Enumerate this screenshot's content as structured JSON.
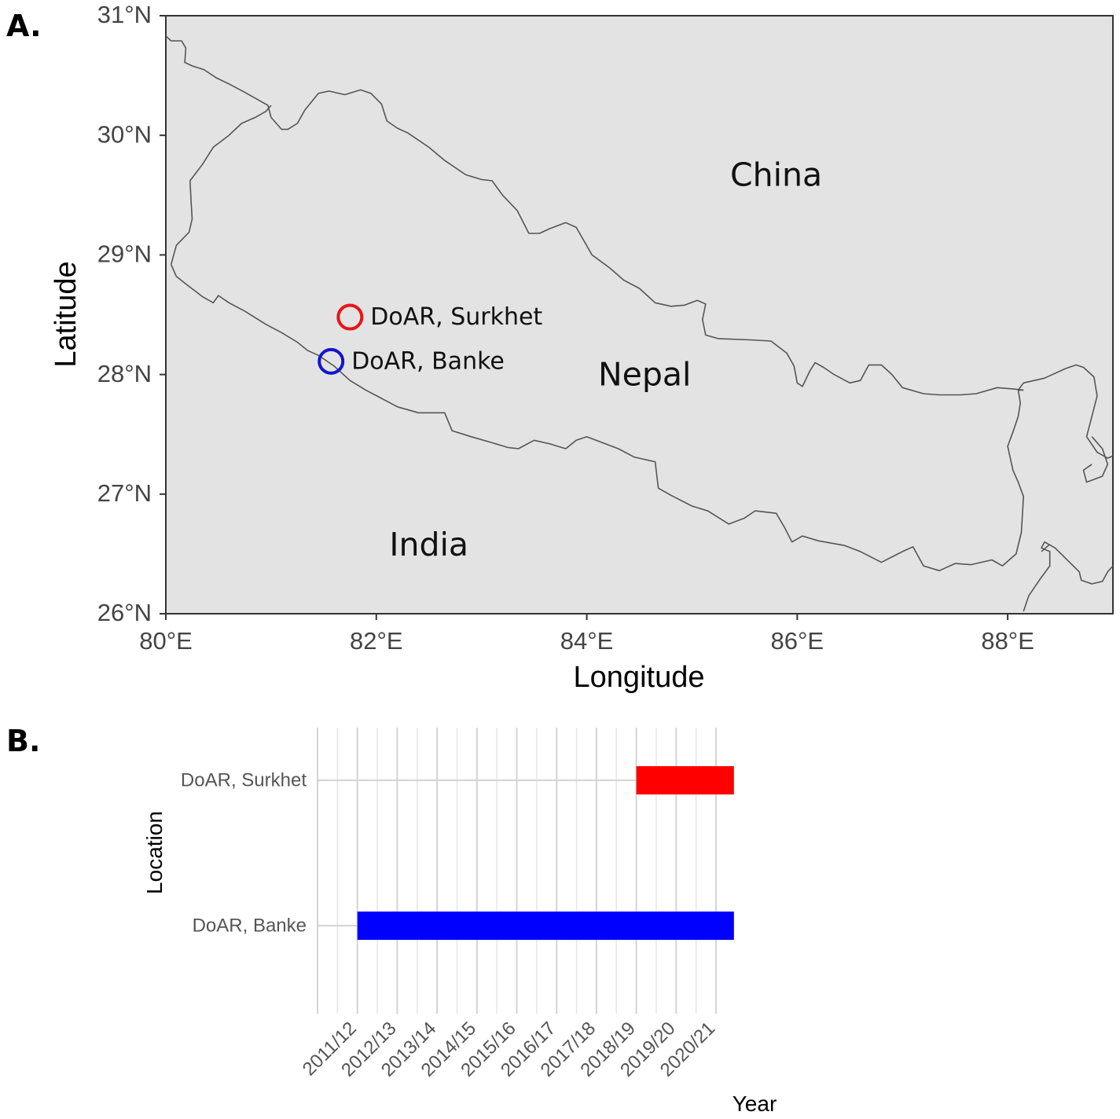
{
  "panels": {
    "a_label": "A.",
    "b_label": "B."
  },
  "chart_data": [
    {
      "type": "scatter",
      "panel": "A.",
      "xlabel": "Longitude",
      "ylabel": "Latitude",
      "xlim": [
        80,
        89
      ],
      "ylim": [
        26,
        31
      ],
      "x_ticks": [
        80,
        82,
        84,
        86,
        88
      ],
      "x_tick_labels": [
        "80°E",
        "82°E",
        "84°E",
        "86°E",
        "88°E"
      ],
      "y_ticks": [
        26,
        27,
        28,
        29,
        30,
        31
      ],
      "y_tick_labels": [
        "26°N",
        "27°N",
        "28°N",
        "29°N",
        "30°N",
        "31°N"
      ],
      "grid": false,
      "background": "#e3e3e3",
      "border_color": "#555555",
      "regions": [
        {
          "name": "China",
          "lon": 85.8,
          "lat": 29.65
        },
        {
          "name": "Nepal",
          "lon": 84.55,
          "lat": 27.98
        },
        {
          "name": "India",
          "lon": 82.5,
          "lat": 26.56
        }
      ],
      "points": [
        {
          "label": "DoAR, Surkhet",
          "lon": 81.75,
          "lat": 28.48,
          "color": "#e8141b"
        },
        {
          "label": "DoAR, Banke",
          "lon": 81.57,
          "lat": 28.11,
          "color": "#1414d2"
        }
      ],
      "borders": [
        [
          [
            80.0,
            30.83
          ],
          [
            80.05,
            30.79
          ],
          [
            80.15,
            30.79
          ],
          [
            80.19,
            30.73
          ],
          [
            80.18,
            30.61
          ],
          [
            80.25,
            30.58
          ],
          [
            80.36,
            30.55
          ],
          [
            80.48,
            30.48
          ],
          [
            80.6,
            30.43
          ],
          [
            80.75,
            30.36
          ],
          [
            80.97,
            30.25
          ],
          [
            81.0,
            30.15
          ],
          [
            81.1,
            30.05
          ],
          [
            81.16,
            30.05
          ],
          [
            81.25,
            30.1
          ],
          [
            81.32,
            30.21
          ],
          [
            81.45,
            30.35
          ],
          [
            81.55,
            30.37
          ],
          [
            81.7,
            30.34
          ],
          [
            81.85,
            30.38
          ],
          [
            81.95,
            30.35
          ],
          [
            82.05,
            30.26
          ],
          [
            82.1,
            30.12
          ],
          [
            82.2,
            30.06
          ],
          [
            82.3,
            30.02
          ],
          [
            82.4,
            29.96
          ],
          [
            82.5,
            29.9
          ],
          [
            82.65,
            29.79
          ],
          [
            82.85,
            29.67
          ],
          [
            83.0,
            29.63
          ],
          [
            83.1,
            29.62
          ],
          [
            83.2,
            29.5
          ],
          [
            83.34,
            29.37
          ],
          [
            83.45,
            29.18
          ],
          [
            83.55,
            29.18
          ],
          [
            83.65,
            29.22
          ],
          [
            83.8,
            29.27
          ],
          [
            83.9,
            29.23
          ],
          [
            84.05,
            29.0
          ],
          [
            84.22,
            28.89
          ],
          [
            84.35,
            28.79
          ],
          [
            84.5,
            28.72
          ],
          [
            84.65,
            28.6
          ],
          [
            84.8,
            28.57
          ],
          [
            84.93,
            28.58
          ],
          [
            85.05,
            28.62
          ],
          [
            85.13,
            28.59
          ],
          [
            85.1,
            28.46
          ],
          [
            85.13,
            28.33
          ],
          [
            85.25,
            28.3
          ],
          [
            85.55,
            28.29
          ],
          [
            85.75,
            28.28
          ],
          [
            85.9,
            28.18
          ],
          [
            85.97,
            28.07
          ],
          [
            86.0,
            27.93
          ],
          [
            86.05,
            27.9
          ],
          [
            86.12,
            28.03
          ],
          [
            86.17,
            28.1
          ],
          [
            86.25,
            28.06
          ],
          [
            86.35,
            28.0
          ],
          [
            86.5,
            27.93
          ],
          [
            86.6,
            27.95
          ],
          [
            86.68,
            28.08
          ],
          [
            86.8,
            28.08
          ],
          [
            86.9,
            28.0
          ],
          [
            87.0,
            27.89
          ],
          [
            87.2,
            27.84
          ],
          [
            87.35,
            27.83
          ],
          [
            87.55,
            27.83
          ],
          [
            87.7,
            27.84
          ],
          [
            87.9,
            27.89
          ],
          [
            88.05,
            27.88
          ],
          [
            88.15,
            27.87
          ]
        ],
        [
          [
            80.05,
            28.92
          ],
          [
            80.1,
            29.08
          ],
          [
            80.22,
            29.19
          ],
          [
            80.25,
            29.3
          ],
          [
            80.24,
            29.45
          ],
          [
            80.23,
            29.62
          ],
          [
            80.35,
            29.76
          ],
          [
            80.45,
            29.9
          ],
          [
            80.6,
            30.0
          ],
          [
            80.72,
            30.1
          ],
          [
            80.85,
            30.15
          ],
          [
            80.95,
            30.2
          ],
          [
            81.0,
            30.25
          ]
        ],
        [
          [
            80.05,
            28.92
          ],
          [
            80.1,
            28.82
          ],
          [
            80.2,
            28.75
          ],
          [
            80.35,
            28.65
          ],
          [
            80.45,
            28.6
          ],
          [
            80.5,
            28.66
          ],
          [
            80.6,
            28.6
          ],
          [
            80.75,
            28.53
          ],
          [
            80.95,
            28.42
          ],
          [
            81.1,
            28.35
          ],
          [
            81.25,
            28.27
          ],
          [
            81.35,
            28.2
          ],
          [
            81.45,
            28.16
          ],
          [
            81.6,
            28.07
          ],
          [
            81.75,
            27.95
          ],
          [
            81.9,
            27.87
          ],
          [
            82.05,
            27.8
          ],
          [
            82.2,
            27.73
          ],
          [
            82.4,
            27.68
          ],
          [
            82.55,
            27.68
          ],
          [
            82.65,
            27.68
          ],
          [
            82.72,
            27.53
          ],
          [
            82.9,
            27.48
          ],
          [
            83.1,
            27.43
          ],
          [
            83.25,
            27.39
          ],
          [
            83.35,
            27.38
          ],
          [
            83.5,
            27.45
          ],
          [
            83.65,
            27.42
          ],
          [
            83.8,
            27.38
          ],
          [
            83.9,
            27.45
          ],
          [
            84.0,
            27.48
          ],
          [
            84.15,
            27.43
          ],
          [
            84.3,
            27.38
          ],
          [
            84.45,
            27.31
          ],
          [
            84.65,
            27.27
          ],
          [
            84.68,
            27.05
          ],
          [
            84.8,
            26.99
          ],
          [
            85.0,
            26.9
          ],
          [
            85.15,
            26.86
          ],
          [
            85.35,
            26.75
          ],
          [
            85.5,
            26.8
          ],
          [
            85.6,
            26.86
          ],
          [
            85.8,
            26.84
          ],
          [
            85.88,
            26.72
          ],
          [
            85.95,
            26.6
          ],
          [
            86.05,
            26.65
          ],
          [
            86.2,
            26.61
          ],
          [
            86.45,
            26.57
          ],
          [
            86.6,
            26.52
          ],
          [
            86.8,
            26.43
          ],
          [
            87.0,
            26.52
          ],
          [
            87.1,
            26.56
          ],
          [
            87.2,
            26.4
          ],
          [
            87.35,
            26.36
          ],
          [
            87.5,
            26.42
          ],
          [
            87.65,
            26.41
          ],
          [
            87.85,
            26.45
          ],
          [
            87.95,
            26.4
          ],
          [
            88.08,
            26.5
          ],
          [
            88.13,
            26.68
          ],
          [
            88.15,
            26.98
          ],
          [
            88.1,
            27.1
          ],
          [
            88.05,
            27.2
          ],
          [
            88.0,
            27.4
          ],
          [
            88.05,
            27.52
          ],
          [
            88.1,
            27.65
          ],
          [
            88.12,
            27.76
          ],
          [
            88.1,
            27.87
          ],
          [
            88.15,
            27.87
          ]
        ],
        [
          [
            88.1,
            27.87
          ],
          [
            88.15,
            27.93
          ],
          [
            88.35,
            27.97
          ],
          [
            88.55,
            28.05
          ],
          [
            88.65,
            28.08
          ],
          [
            88.72,
            28.06
          ],
          [
            88.82,
            27.98
          ],
          [
            88.85,
            27.82
          ],
          [
            88.8,
            27.65
          ],
          [
            88.75,
            27.48
          ],
          [
            88.85,
            27.35
          ],
          [
            88.95,
            27.3
          ],
          [
            89.0,
            27.32
          ]
        ],
        [
          [
            88.8,
            27.48
          ],
          [
            88.9,
            27.38
          ],
          [
            88.95,
            27.25
          ],
          [
            88.9,
            27.15
          ],
          [
            88.75,
            27.1
          ],
          [
            88.72,
            27.2
          ],
          [
            88.8,
            27.25
          ]
        ],
        [
          [
            88.15,
            26.02
          ],
          [
            88.2,
            26.15
          ],
          [
            88.3,
            26.28
          ],
          [
            88.4,
            26.4
          ],
          [
            88.4,
            26.52
          ],
          [
            88.32,
            26.55
          ],
          [
            88.35,
            26.6
          ],
          [
            88.45,
            26.55
          ],
          [
            88.6,
            26.42
          ],
          [
            88.68,
            26.35
          ],
          [
            88.7,
            26.28
          ],
          [
            88.8,
            26.25
          ],
          [
            88.9,
            26.27
          ],
          [
            88.95,
            26.35
          ],
          [
            89.0,
            26.4
          ]
        ],
        [
          [
            88.32,
            26.52
          ],
          [
            88.4,
            26.58
          ]
        ]
      ]
    },
    {
      "type": "bar",
      "panel": "B.",
      "orientation": "horizontal",
      "xlabel": "Year",
      "ylabel": "Location",
      "categories": [
        "2011/12",
        "2012/13",
        "2013/14",
        "2014/15",
        "2015/16",
        "2016/17",
        "2017/18",
        "2018/19",
        "2019/20",
        "2020/21"
      ],
      "x_range": [
        "2010/11",
        "2020/21"
      ],
      "grid": true,
      "series": [
        {
          "name": "DoAR, Surkhet",
          "start": "2018/19",
          "end": "2020/21",
          "color": "#ff0000"
        },
        {
          "name": "DoAR, Banke",
          "start": "2011/12",
          "end": "2020/21",
          "color": "#0000ff"
        }
      ]
    }
  ]
}
